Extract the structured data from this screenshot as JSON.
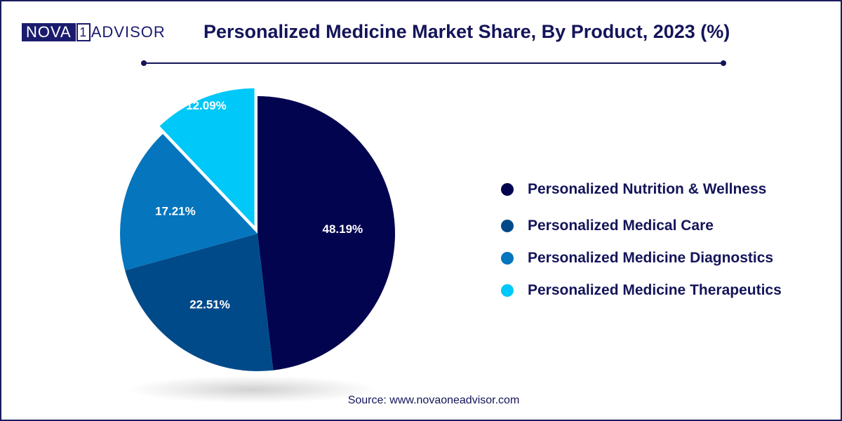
{
  "brand": {
    "part1": "NOVA",
    "part2": "1",
    "part3": "ADVISOR"
  },
  "title": "Personalized Medicine Market Share, By Product, 2023 (%)",
  "source": "Source: www.novaoneadvisor.com",
  "chart_data": {
    "type": "pie",
    "title": "Personalized Medicine Market Share, By Product, 2023 (%)",
    "legend_position": "right",
    "slices": [
      {
        "value": 48.19,
        "label": "48.19%",
        "color": "#03044f"
      },
      {
        "value": 22.51,
        "label": "22.51%",
        "color": "#014a8a"
      },
      {
        "value": 17.21,
        "label": "17.21%",
        "color": "#0575bd"
      },
      {
        "value": 12.09,
        "label": "12.09%",
        "color": "#00c8f8"
      }
    ],
    "legend": [
      {
        "label": "Personalized Nutrition & Wellness",
        "color": "#03044f"
      },
      {
        "label": "Personalized Medical Care",
        "color": "#014a8a"
      },
      {
        "label": "Personalized Medicine Diagnostics",
        "color": "#0575bd"
      },
      {
        "label": "Personalized Medicine Therapeutics",
        "color": "#00c8f8"
      }
    ]
  }
}
